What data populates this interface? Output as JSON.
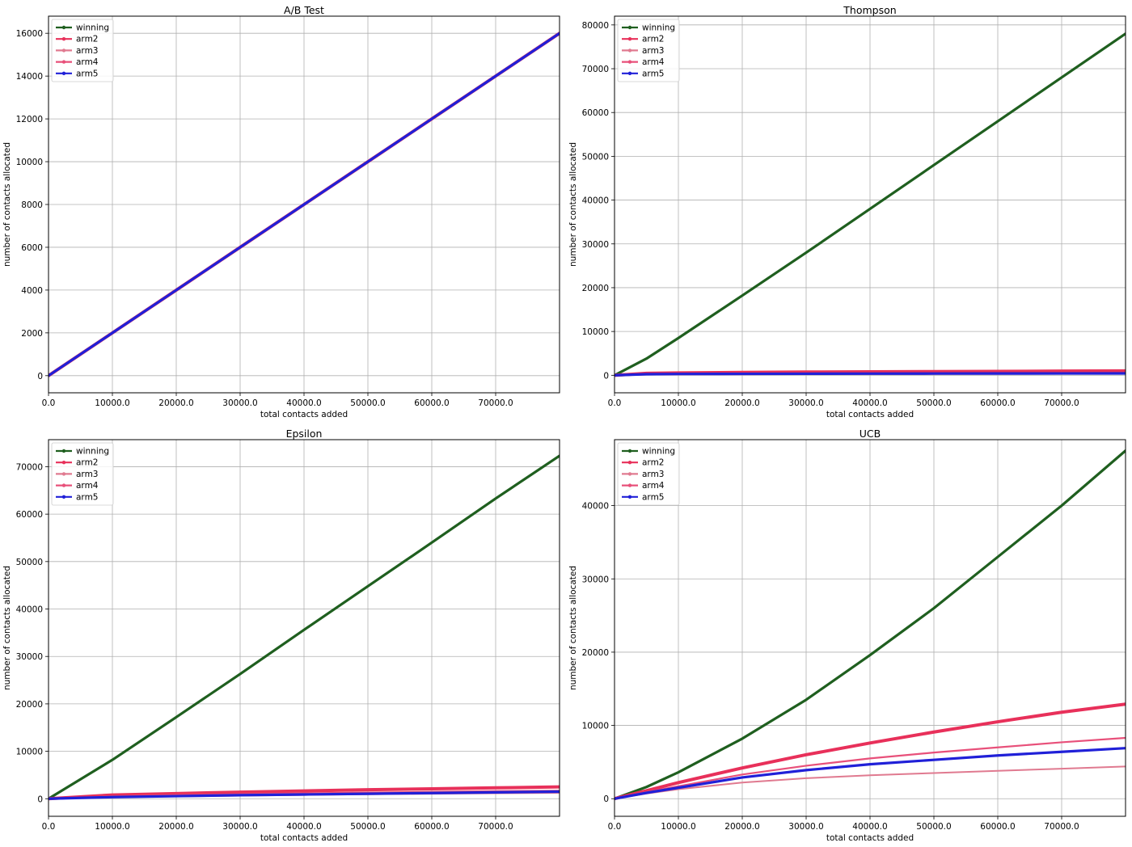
{
  "chart_data": [
    {
      "type": "line",
      "title": "A/B Test",
      "xlabel": "total contacts added",
      "ylabel": "number of contacts allocated",
      "xlim": [
        0,
        80000
      ],
      "ylim": [
        -800,
        16800
      ],
      "xticks": [
        0,
        10000,
        20000,
        30000,
        40000,
        50000,
        60000,
        70000
      ],
      "xtick_labels": [
        "0.0",
        "10000.0",
        "20000.0",
        "30000.0",
        "40000.0",
        "50000.0",
        "60000.0",
        "70000.0"
      ],
      "yticks": [
        0,
        2000,
        4000,
        6000,
        8000,
        10000,
        12000,
        14000,
        16000
      ],
      "ytick_labels": [
        "0",
        "2000",
        "4000",
        "6000",
        "8000",
        "10000",
        "12000",
        "14000",
        "16000"
      ],
      "grid": true,
      "legend": "top-left",
      "x": [
        0,
        10000,
        20000,
        30000,
        40000,
        50000,
        60000,
        70000,
        80000
      ],
      "series": [
        {
          "name": "winning",
          "color": "#1f5f1f",
          "values": [
            0,
            2000,
            4000,
            6000,
            8000,
            10000,
            12000,
            14000,
            16000
          ]
        },
        {
          "name": "arm2",
          "color": "#e8305a",
          "values": [
            0,
            2000,
            4000,
            6000,
            8000,
            10000,
            12000,
            14000,
            16000
          ]
        },
        {
          "name": "arm3",
          "color": "#e07a90",
          "values": [
            0,
            2000,
            4000,
            6000,
            8000,
            10000,
            12000,
            14000,
            16000
          ]
        },
        {
          "name": "arm4",
          "color": "#e8507a",
          "values": [
            0,
            2000,
            4000,
            6000,
            8000,
            10000,
            12000,
            14000,
            16000
          ]
        },
        {
          "name": "arm5",
          "color": "#2020d8",
          "values": [
            0,
            2000,
            4000,
            6000,
            8000,
            10000,
            12000,
            14000,
            16000
          ]
        }
      ]
    },
    {
      "type": "line",
      "title": "Thompson",
      "xlabel": "total contacts added",
      "ylabel": "number of contacts allocated",
      "xlim": [
        0,
        80000
      ],
      "ylim": [
        -4000,
        82000
      ],
      "xticks": [
        0,
        10000,
        20000,
        30000,
        40000,
        50000,
        60000,
        70000
      ],
      "xtick_labels": [
        "0.0",
        "10000.0",
        "20000.0",
        "30000.0",
        "40000.0",
        "50000.0",
        "60000.0",
        "70000.0"
      ],
      "yticks": [
        0,
        10000,
        20000,
        30000,
        40000,
        50000,
        60000,
        70000,
        80000
      ],
      "ytick_labels": [
        "0",
        "10000",
        "20000",
        "30000",
        "40000",
        "50000",
        "60000",
        "70000",
        "80000"
      ],
      "grid": true,
      "legend": "top-left",
      "x": [
        0,
        5000,
        10000,
        20000,
        30000,
        40000,
        50000,
        60000,
        70000,
        80000
      ],
      "series": [
        {
          "name": "winning",
          "color": "#1f5f1f",
          "values": [
            0,
            3800,
            8500,
            18200,
            28000,
            38000,
            48000,
            58000,
            68000,
            78000
          ]
        },
        {
          "name": "arm2",
          "color": "#e8305a",
          "values": [
            0,
            450,
            550,
            650,
            750,
            800,
            850,
            900,
            950,
            1000
          ]
        },
        {
          "name": "arm3",
          "color": "#e07a90",
          "values": [
            0,
            150,
            200,
            230,
            260,
            280,
            300,
            320,
            340,
            350
          ]
        },
        {
          "name": "arm4",
          "color": "#e8507a",
          "values": [
            0,
            200,
            260,
            300,
            330,
            360,
            380,
            400,
            420,
            440
          ]
        },
        {
          "name": "arm5",
          "color": "#2020d8",
          "values": [
            0,
            250,
            300,
            330,
            350,
            370,
            390,
            400,
            420,
            430
          ]
        }
      ]
    },
    {
      "type": "line",
      "title": "Epsilon",
      "xlabel": "total contacts added",
      "ylabel": "number of contacts allocated",
      "xlim": [
        0,
        80000
      ],
      "ylim": [
        -3700,
        75700
      ],
      "xticks": [
        0,
        10000,
        20000,
        30000,
        40000,
        50000,
        60000,
        70000
      ],
      "xtick_labels": [
        "0.0",
        "10000.0",
        "20000.0",
        "30000.0",
        "40000.0",
        "50000.0",
        "60000.0",
        "70000.0"
      ],
      "yticks": [
        0,
        10000,
        20000,
        30000,
        40000,
        50000,
        60000,
        70000
      ],
      "ytick_labels": [
        "0",
        "10000",
        "20000",
        "30000",
        "40000",
        "50000",
        "60000",
        "70000"
      ],
      "grid": true,
      "legend": "top-left",
      "x": [
        0,
        10000,
        20000,
        30000,
        40000,
        50000,
        60000,
        70000,
        80000
      ],
      "series": [
        {
          "name": "winning",
          "color": "#1f5f1f",
          "values": [
            0,
            8200,
            17200,
            26300,
            35600,
            44800,
            54000,
            63300,
            72300
          ]
        },
        {
          "name": "arm2",
          "color": "#e8305a",
          "values": [
            0,
            800,
            1100,
            1400,
            1650,
            1900,
            2100,
            2300,
            2500
          ]
        },
        {
          "name": "arm3",
          "color": "#e07a90",
          "values": [
            0,
            300,
            500,
            650,
            800,
            950,
            1050,
            1150,
            1250
          ]
        },
        {
          "name": "arm4",
          "color": "#e8507a",
          "values": [
            0,
            500,
            750,
            950,
            1150,
            1300,
            1450,
            1600,
            1700
          ]
        },
        {
          "name": "arm5",
          "color": "#2020d8",
          "values": [
            0,
            350,
            550,
            750,
            900,
            1050,
            1200,
            1350,
            1500
          ]
        }
      ]
    },
    {
      "type": "line",
      "title": "UCB",
      "xlabel": "total contacts added",
      "ylabel": "number of contacts allocated",
      "xlim": [
        0,
        80000
      ],
      "ylim": [
        -2400,
        49000
      ],
      "xticks": [
        0,
        10000,
        20000,
        30000,
        40000,
        50000,
        60000,
        70000
      ],
      "xtick_labels": [
        "0.0",
        "10000.0",
        "20000.0",
        "30000.0",
        "40000.0",
        "50000.0",
        "60000.0",
        "70000.0"
      ],
      "yticks": [
        0,
        10000,
        20000,
        30000,
        40000
      ],
      "ytick_labels": [
        "0",
        "10000",
        "20000",
        "30000",
        "40000"
      ],
      "grid": true,
      "legend": "top-left",
      "x": [
        0,
        5000,
        10000,
        20000,
        30000,
        40000,
        50000,
        60000,
        70000,
        80000
      ],
      "series": [
        {
          "name": "winning",
          "color": "#1f5f1f",
          "values": [
            0,
            1600,
            3600,
            8200,
            13500,
            19600,
            26000,
            33000,
            40000,
            47500
          ]
        },
        {
          "name": "arm2",
          "color": "#e8305a",
          "values": [
            0,
            1100,
            2200,
            4200,
            6000,
            7600,
            9100,
            10500,
            11800,
            12900
          ]
        },
        {
          "name": "arm3",
          "color": "#e07a90",
          "values": [
            0,
            700,
            1300,
            2200,
            2800,
            3200,
            3500,
            3800,
            4100,
            4400
          ]
        },
        {
          "name": "arm4",
          "color": "#e8507a",
          "values": [
            0,
            900,
            1700,
            3300,
            4500,
            5500,
            6300,
            7000,
            7700,
            8300
          ]
        },
        {
          "name": "arm5",
          "color": "#2020d8",
          "values": [
            0,
            800,
            1500,
            2900,
            3900,
            4700,
            5300,
            5900,
            6400,
            6900
          ]
        }
      ]
    }
  ]
}
